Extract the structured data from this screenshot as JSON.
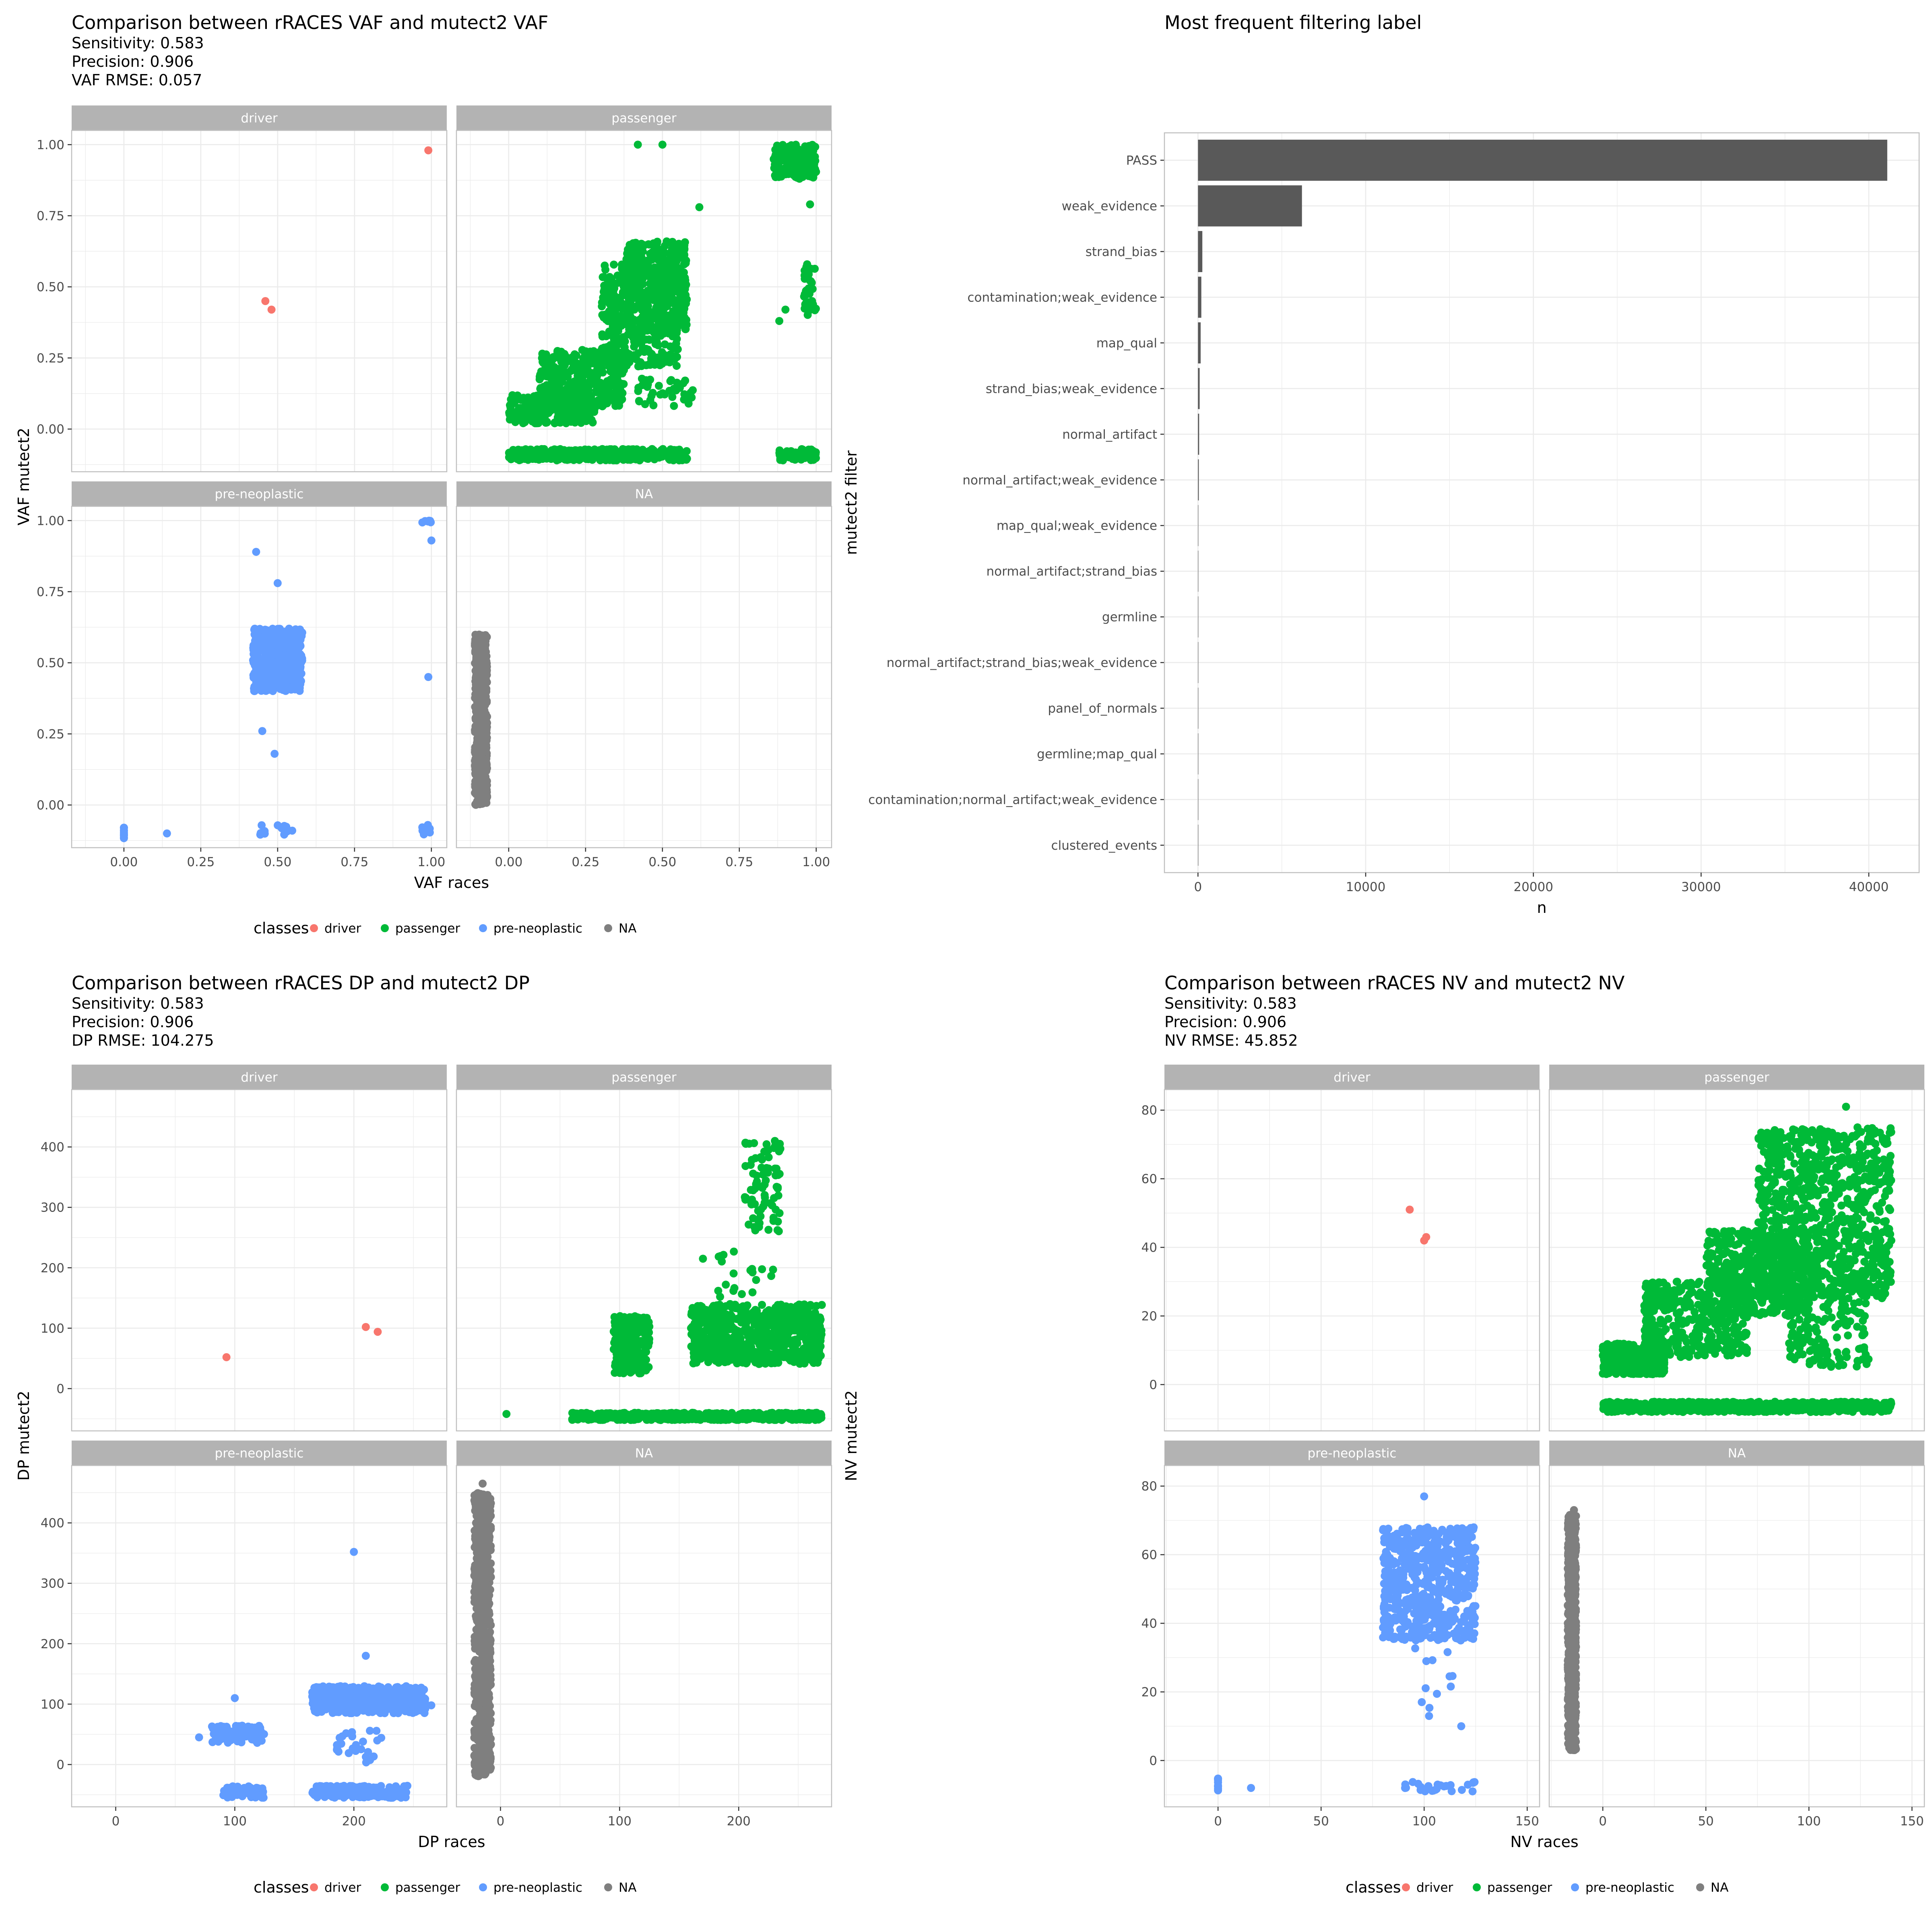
{
  "colors": {
    "driver": "#F8766D",
    "passenger": "#00BA38",
    "pre-neoplastic": "#619CFF",
    "NA": "#7F7F7F",
    "bar": "#595959",
    "strip": "#B3B3B3",
    "grid": "#EBEBEB",
    "panel_border": "#BFBFBF"
  },
  "chart_data": [
    {
      "id": "vaf",
      "type": "scatter",
      "title": "Comparison between rRACES VAF and mutect2 VAF",
      "subtitle_lines": [
        "Sensitivity: 0.583",
        "Precision: 0.906",
        "VAF RMSE: 0.057"
      ],
      "xlabel": "VAF races",
      "ylabel": "VAF mutect2",
      "xlim": [
        -0.17,
        1.05
      ],
      "ylim": [
        -0.15,
        1.05
      ],
      "xticks": [
        0,
        0.25,
        0.5,
        0.75,
        1
      ],
      "xtick_labels": [
        "0.00",
        "0.25",
        "0.50",
        "0.75",
        "1.00"
      ],
      "yticks": [
        0,
        0.25,
        0.5,
        0.75,
        1
      ],
      "ytick_labels": [
        "0.00",
        "0.25",
        "0.50",
        "0.75",
        "1.00"
      ],
      "legend": {
        "title": "classes",
        "entries": [
          "driver",
          "passenger",
          "pre-neoplastic",
          "NA"
        ],
        "position": "bottom"
      },
      "panels": [
        {
          "label": "driver",
          "class": "driver",
          "points": [
            [
              0.99,
              0.98
            ],
            [
              0.46,
              0.45
            ],
            [
              0.48,
              0.42
            ]
          ]
        },
        {
          "label": "passenger",
          "class": "passenger",
          "clusters": [
            {
              "cx": [
                0.0,
                0.28
              ],
              "cy": [
                0.02,
                0.12
              ],
              "n": 260
            },
            {
              "cx": [
                0.1,
                0.38
              ],
              "cy": [
                0.08,
                0.28
              ],
              "n": 360
            },
            {
              "cx": [
                0.3,
                0.55
              ],
              "cy": [
                0.22,
                0.58
              ],
              "n": 420
            },
            {
              "cx": [
                0.38,
                0.58
              ],
              "cy": [
                0.35,
                0.66
              ],
              "n": 320
            },
            {
              "cx": [
                0.0,
                0.58
              ],
              "cy": [
                -0.11,
                -0.07
              ],
              "n": 380
            },
            {
              "cx": [
                0.86,
                1.0
              ],
              "cy": [
                0.88,
                1.0
              ],
              "n": 160
            },
            {
              "cx": [
                0.96,
                1.0
              ],
              "cy": [
                0.4,
                0.58
              ],
              "n": 40
            },
            {
              "cx": [
                0.88,
                1.0
              ],
              "cy": [
                -0.11,
                -0.07
              ],
              "n": 60
            },
            {
              "cx": [
                0.42,
                0.6
              ],
              "cy": [
                0.08,
                0.18
              ],
              "n": 40
            }
          ],
          "points": [
            [
              0.42,
              1.0
            ],
            [
              0.5,
              1.0
            ],
            [
              0.62,
              0.78
            ],
            [
              0.9,
              0.42
            ],
            [
              0.88,
              0.38
            ],
            [
              0.98,
              0.79
            ]
          ]
        },
        {
          "label": "pre-neoplastic",
          "class": "pre-neoplastic",
          "clusters": [
            {
              "cx": [
                0.42,
                0.58
              ],
              "cy": [
                0.4,
                0.62
              ],
              "n": 500
            },
            {
              "cx": [
                0.0,
                0.0
              ],
              "cy": [
                -0.12,
                -0.06
              ],
              "n": 12
            },
            {
              "cx": [
                0.44,
                0.56
              ],
              "cy": [
                -0.11,
                -0.07
              ],
              "n": 14
            },
            {
              "cx": [
                0.97,
                1.0
              ],
              "cy": [
                -0.11,
                -0.07
              ],
              "n": 8
            },
            {
              "cx": [
                0.97,
                1.0
              ],
              "cy": [
                0.99,
                1.0
              ],
              "n": 6
            }
          ],
          "points": [
            [
              0.43,
              0.89
            ],
            [
              0.5,
              0.78
            ],
            [
              0.45,
              0.26
            ],
            [
              0.49,
              0.18
            ],
            [
              0.14,
              -0.1
            ],
            [
              0.99,
              0.45
            ],
            [
              1.0,
              0.93
            ]
          ]
        },
        {
          "label": "NA",
          "class": "NA",
          "clusters": [
            {
              "cx": [
                -0.11,
                -0.07
              ],
              "cy": [
                0.0,
                0.6
              ],
              "n": 600
            }
          ],
          "points": []
        }
      ]
    },
    {
      "id": "filter",
      "type": "bar",
      "orientation": "horizontal",
      "title": "Most frequent filtering label",
      "xlabel": "n",
      "ylabel": "mutect2 filter",
      "xlim": [
        -2000,
        43000
      ],
      "xticks": [
        0,
        10000,
        20000,
        30000,
        40000
      ],
      "xtick_labels": [
        "0",
        "10000",
        "20000",
        "30000",
        "40000"
      ],
      "categories": [
        "PASS",
        "weak_evidence",
        "strand_bias",
        "contamination;weak_evidence",
        "map_qual",
        "strand_bias;weak_evidence",
        "normal_artifact",
        "normal_artifact;weak_evidence",
        "map_qual;weak_evidence",
        "normal_artifact;strand_bias",
        "germline",
        "normal_artifact;strand_bias;weak_evidence",
        "panel_of_normals",
        "germline;map_qual",
        "contamination;normal_artifact;weak_evidence",
        "clustered_events"
      ],
      "values": [
        41100,
        6200,
        260,
        200,
        160,
        100,
        70,
        50,
        20,
        15,
        12,
        8,
        5,
        3,
        2,
        1
      ]
    },
    {
      "id": "dp",
      "type": "scatter",
      "title": "Comparison between rRACES DP and mutect2 DP",
      "subtitle_lines": [
        "Sensitivity: 0.583",
        "Precision: 0.906",
        "DP RMSE: 104.275"
      ],
      "xlabel": "DP races",
      "ylabel": "DP mutect2",
      "xlim": [
        -37,
        278
      ],
      "xlim_na": [
        -37,
        278
      ],
      "ylim": [
        -70,
        495
      ],
      "xticks": [
        0,
        100,
        200
      ],
      "xtick_labels": [
        "0",
        "100",
        "200"
      ],
      "yticks": [
        0,
        100,
        200,
        300,
        400
      ],
      "ytick_labels": [
        "0",
        "100",
        "200",
        "300",
        "400"
      ],
      "legend": {
        "title": "classes",
        "entries": [
          "driver",
          "passenger",
          "pre-neoplastic",
          "NA"
        ],
        "position": "bottom"
      },
      "panels": [
        {
          "label": "driver",
          "class": "driver",
          "points": [
            [
              93,
              52
            ],
            [
              210,
              102
            ],
            [
              220,
              94
            ]
          ]
        },
        {
          "label": "passenger",
          "class": "passenger",
          "clusters": [
            {
              "cx": [
                160,
                270
              ],
              "cy": [
                40,
                140
              ],
              "n": 700
            },
            {
              "cx": [
                95,
                125
              ],
              "cy": [
                25,
                120
              ],
              "n": 220
            },
            {
              "cx": [
                60,
                270
              ],
              "cy": [
                -52,
                -40
              ],
              "n": 600
            },
            {
              "cx": [
                205,
                235
              ],
              "cy": [
                260,
                420
              ],
              "n": 80
            },
            {
              "cx": [
                180,
                230
              ],
              "cy": [
                150,
                230
              ],
              "n": 20
            }
          ],
          "points": [
            [
              5,
              -42
            ],
            [
              170,
              215
            ],
            [
              225,
              395
            ]
          ]
        },
        {
          "label": "pre-neoplastic",
          "class": "pre-neoplastic",
          "clusters": [
            {
              "cx": [
                165,
                260
              ],
              "cy": [
                85,
                130
              ],
              "n": 420
            },
            {
              "cx": [
                80,
                125
              ],
              "cy": [
                35,
                65
              ],
              "n": 90
            },
            {
              "cx": [
                90,
                125
              ],
              "cy": [
                -55,
                -35
              ],
              "n": 50
            },
            {
              "cx": [
                165,
                245
              ],
              "cy": [
                -55,
                -35
              ],
              "n": 200
            },
            {
              "cx": [
                185,
                225
              ],
              "cy": [
                0,
                60
              ],
              "n": 25
            }
          ],
          "points": [
            [
              200,
              352
            ],
            [
              210,
              180
            ],
            [
              100,
              110
            ],
            [
              265,
              98
            ],
            [
              70,
              45
            ]
          ]
        },
        {
          "label": "NA",
          "class": "NA",
          "clusters": [
            {
              "cx": [
                -22,
                -8
              ],
              "cy": [
                -20,
                450
              ],
              "n": 700
            }
          ],
          "points": [
            [
              -15,
              465
            ]
          ]
        }
      ]
    },
    {
      "id": "nv",
      "type": "scatter",
      "title": "Comparison between rRACES NV and mutect2 NV",
      "subtitle_lines": [
        "Sensitivity: 0.583",
        "Precision: 0.906",
        "NV RMSE: 45.852"
      ],
      "xlabel": "NV races",
      "ylabel": "NV mutect2",
      "xlim": [
        -26,
        156
      ],
      "ylim": [
        -13.5,
        86
      ],
      "xticks": [
        0,
        50,
        100,
        150
      ],
      "xtick_labels": [
        "0",
        "50",
        "100",
        "150"
      ],
      "yticks": [
        0,
        20,
        40,
        60,
        80
      ],
      "ytick_labels": [
        "0",
        "20",
        "40",
        "60",
        "80"
      ],
      "legend": {
        "title": "classes",
        "entries": [
          "driver",
          "passenger",
          "pre-neoplastic",
          "NA"
        ],
        "position": "bottom"
      },
      "panels": [
        {
          "label": "driver",
          "class": "driver",
          "points": [
            [
              93,
              51
            ],
            [
              100,
              42
            ],
            [
              101,
              43
            ]
          ]
        },
        {
          "label": "passenger",
          "class": "passenger",
          "clusters": [
            {
              "cx": [
                0,
                30
              ],
              "cy": [
                3,
                12
              ],
              "n": 400
            },
            {
              "cx": [
                20,
                70
              ],
              "cy": [
                8,
                30
              ],
              "n": 400
            },
            {
              "cx": [
                50,
                100
              ],
              "cy": [
                20,
                45
              ],
              "n": 500
            },
            {
              "cx": [
                75,
                140
              ],
              "cy": [
                25,
                75
              ],
              "n": 900
            },
            {
              "cx": [
                90,
                130
              ],
              "cy": [
                5,
                30
              ],
              "n": 150
            },
            {
              "cx": [
                0,
                140
              ],
              "cy": [
                -8,
                -5
              ],
              "n": 700
            }
          ],
          "points": [
            [
              118,
              81
            ]
          ]
        },
        {
          "label": "pre-neoplastic",
          "class": "pre-neoplastic",
          "clusters": [
            {
              "cx": [
                80,
                125
              ],
              "cy": [
                35,
                68
              ],
              "n": 600
            },
            {
              "cx": [
                0,
                0
              ],
              "cy": [
                -9,
                -5
              ],
              "n": 10
            },
            {
              "cx": [
                90,
                125
              ],
              "cy": [
                -9,
                -6
              ],
              "n": 25
            },
            {
              "cx": [
                95,
                115
              ],
              "cy": [
                10,
                35
              ],
              "n": 12
            }
          ],
          "points": [
            [
              100,
              77
            ],
            [
              16,
              -8
            ],
            [
              118,
              10
            ]
          ]
        },
        {
          "label": "NA",
          "class": "NA",
          "clusters": [
            {
              "cx": [
                -17,
                -13
              ],
              "cy": [
                3,
                72
              ],
              "n": 700
            }
          ],
          "points": [
            [
              -14,
              73
            ]
          ]
        }
      ]
    }
  ]
}
